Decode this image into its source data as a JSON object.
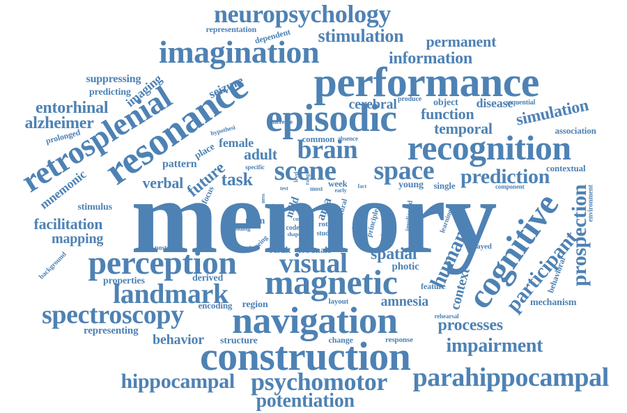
{
  "theme": {
    "word_color": "#4e82b4",
    "background": "#ffffff"
  },
  "words": [
    "memory",
    "performance",
    "construction",
    "navigation",
    "episodic",
    "recognition",
    "resonance",
    "magnetic",
    "perception",
    "imagination",
    "retrosplenial",
    "cognitive",
    "parahippocampal",
    "neuropsychology",
    "spectroscopy",
    "scene",
    "space",
    "visual",
    "landmark",
    "prospection",
    "brain",
    "psychomotor",
    "potentiation",
    "hippocampal",
    "human",
    "participant",
    "impairment",
    "prediction",
    "processes",
    "entorhinal",
    "alzheimer",
    "information",
    "stimulation",
    "permanent",
    "temporal",
    "simulation",
    "function",
    "spatial",
    "facilitation",
    "mapping",
    "task",
    "future",
    "verbal",
    "adult",
    "cerebral",
    "disease",
    "context",
    "amnesia",
    "mnemonic",
    "female",
    "behavior",
    "representing",
    "mechanism",
    "seizure",
    "imaging",
    "suppressing",
    "predicting",
    "photic",
    "association",
    "pattern",
    "stimulus",
    "properties",
    "derived",
    "region",
    "encoding",
    "structure",
    "feature",
    "place",
    "focus",
    "young",
    "single",
    "contextual",
    "environment",
    "behavioral",
    "principle",
    "term",
    "result",
    "lobe",
    "male",
    "change",
    "response",
    "layout",
    "representation",
    "dependent",
    "prolonged",
    "background",
    "posterior",
    "material",
    "ageing",
    "finding",
    "learning",
    "delayed",
    "rehearsal",
    "component",
    "sequential",
    "produce",
    "object",
    "common",
    "absence",
    "hypothesi",
    "specific",
    "increase",
    "implicated",
    "area",
    "mild",
    "week",
    "role",
    "rote",
    "code",
    "study",
    "most",
    "neural",
    "range",
    "level",
    "shape",
    "cost",
    "test",
    "activity",
    "ness",
    "early",
    "fact",
    "over",
    "word",
    "post"
  ]
}
